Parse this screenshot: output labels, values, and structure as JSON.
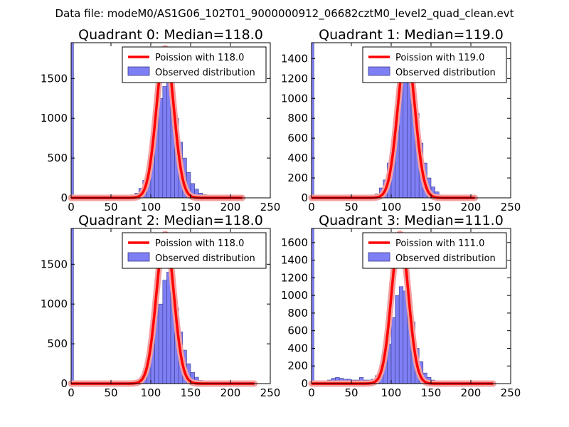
{
  "figure": {
    "suptitle": "Data file: modeM0/AS1G06_102T01_9000000912_06682cztM0_level2_quad_clean.evt"
  },
  "style": {
    "hist_fill": "#7f7ff5",
    "hist_edge": "#3a3a8c",
    "curve_color": "#ff0000",
    "curve_alpha_color": "#f4a0a0",
    "axes_color": "#000000"
  },
  "chart_data": [
    {
      "type": "bar",
      "title": "Quadrant 0: Median=118.0",
      "xlim": [
        0,
        250
      ],
      "ylim": [
        0,
        1950
      ],
      "xticks": [
        0,
        50,
        100,
        150,
        200,
        250
      ],
      "yticks": [
        0,
        500,
        1000,
        1500
      ],
      "legend": {
        "placement": "top-right",
        "line_label": "Poission with 118.0",
        "bar_label": "Observed distribution"
      },
      "zero_bin_value": 1950,
      "bin_width": 5,
      "bins": [
        [
          75,
          10
        ],
        [
          80,
          60
        ],
        [
          85,
          120
        ],
        [
          90,
          220
        ],
        [
          95,
          400
        ],
        [
          100,
          750
        ],
        [
          105,
          1050
        ],
        [
          110,
          1250
        ],
        [
          115,
          1400
        ],
        [
          120,
          1450
        ],
        [
          125,
          1350
        ],
        [
          130,
          1000
        ],
        [
          135,
          700
        ],
        [
          140,
          500
        ],
        [
          145,
          320
        ],
        [
          150,
          180
        ],
        [
          155,
          110
        ],
        [
          160,
          60
        ],
        [
          165,
          40
        ],
        [
          170,
          25
        ],
        [
          175,
          12
        ],
        [
          180,
          6
        ],
        [
          185,
          3
        ]
      ],
      "poisson": {
        "mean": 118.0,
        "peak": 1880,
        "x_range": [
          0,
          215
        ]
      }
    },
    {
      "type": "bar",
      "title": "Quadrant 1: Median=119.0",
      "xlim": [
        0,
        250
      ],
      "ylim": [
        0,
        1560
      ],
      "xticks": [
        0,
        50,
        100,
        150,
        200,
        250
      ],
      "yticks": [
        0,
        200,
        400,
        600,
        800,
        1000,
        1200,
        1400
      ],
      "legend": {
        "placement": "top-right",
        "line_label": "Poission with 119.0",
        "bar_label": "Observed distribution"
      },
      "zero_bin_value": 1560,
      "bin_width": 5,
      "bins": [
        [
          75,
          8
        ],
        [
          80,
          40
        ],
        [
          85,
          100
        ],
        [
          90,
          180
        ],
        [
          95,
          350
        ],
        [
          100,
          550
        ],
        [
          105,
          800
        ],
        [
          110,
          1200
        ],
        [
          115,
          1300
        ],
        [
          120,
          1250
        ],
        [
          125,
          1150
        ],
        [
          130,
          850
        ],
        [
          135,
          550
        ],
        [
          140,
          350
        ],
        [
          145,
          200
        ],
        [
          150,
          110
        ],
        [
          155,
          60
        ],
        [
          160,
          30
        ],
        [
          165,
          15
        ],
        [
          170,
          8
        ],
        [
          175,
          4
        ]
      ],
      "poisson": {
        "mean": 119.0,
        "peak": 1480,
        "x_range": [
          0,
          205
        ]
      }
    },
    {
      "type": "bar",
      "title": "Quadrant 2: Median=118.0",
      "xlim": [
        0,
        250
      ],
      "ylim": [
        0,
        1950
      ],
      "xticks": [
        0,
        50,
        100,
        150,
        200,
        250
      ],
      "yticks": [
        0,
        500,
        1000,
        1500
      ],
      "legend": {
        "placement": "top-right",
        "line_label": "Poission with 118.0",
        "bar_label": "Observed distribution"
      },
      "zero_bin_value": 1950,
      "bin_width": 5,
      "bins": [
        [
          80,
          10
        ],
        [
          85,
          40
        ],
        [
          90,
          100
        ],
        [
          95,
          200
        ],
        [
          100,
          500
        ],
        [
          105,
          1000
        ],
        [
          110,
          1000
        ],
        [
          115,
          1300
        ],
        [
          120,
          1400
        ],
        [
          125,
          1350
        ],
        [
          130,
          950
        ],
        [
          135,
          650
        ],
        [
          140,
          420
        ],
        [
          145,
          250
        ],
        [
          150,
          140
        ],
        [
          155,
          80
        ],
        [
          160,
          40
        ],
        [
          165,
          20
        ],
        [
          170,
          10
        ],
        [
          175,
          5
        ]
      ],
      "poisson": {
        "mean": 118.0,
        "peak": 1880,
        "x_range": [
          0,
          230
        ]
      }
    },
    {
      "type": "bar",
      "title": "Quadrant 3: Median=111.0",
      "xlim": [
        0,
        250
      ],
      "ylim": [
        0,
        1760
      ],
      "xticks": [
        0,
        50,
        100,
        150,
        200,
        250
      ],
      "yticks": [
        0,
        200,
        400,
        600,
        800,
        1000,
        1200,
        1400,
        1600
      ],
      "legend": {
        "placement": "top-right",
        "line_label": "Poission with 111.0",
        "bar_label": "Observed distribution"
      },
      "zero_bin_value": 1760,
      "bin_width": 5,
      "bins": [
        [
          5,
          20
        ],
        [
          10,
          30
        ],
        [
          15,
          30
        ],
        [
          20,
          40
        ],
        [
          25,
          60
        ],
        [
          30,
          70
        ],
        [
          35,
          60
        ],
        [
          40,
          50
        ],
        [
          45,
          50
        ],
        [
          50,
          40
        ],
        [
          55,
          40
        ],
        [
          60,
          70
        ],
        [
          65,
          40
        ],
        [
          70,
          40
        ],
        [
          75,
          50
        ],
        [
          80,
          90
        ],
        [
          85,
          150
        ],
        [
          90,
          250
        ],
        [
          95,
          450
        ],
        [
          100,
          750
        ],
        [
          105,
          1000
        ],
        [
          110,
          1100
        ],
        [
          115,
          1050
        ],
        [
          120,
          850
        ],
        [
          125,
          700
        ],
        [
          130,
          400
        ],
        [
          135,
          250
        ],
        [
          140,
          120
        ],
        [
          145,
          70
        ],
        [
          150,
          40
        ],
        [
          155,
          20
        ],
        [
          160,
          10
        ],
        [
          165,
          5
        ]
      ],
      "poisson": {
        "mean": 111.0,
        "peak": 1700,
        "x_range": [
          0,
          228
        ]
      }
    }
  ]
}
